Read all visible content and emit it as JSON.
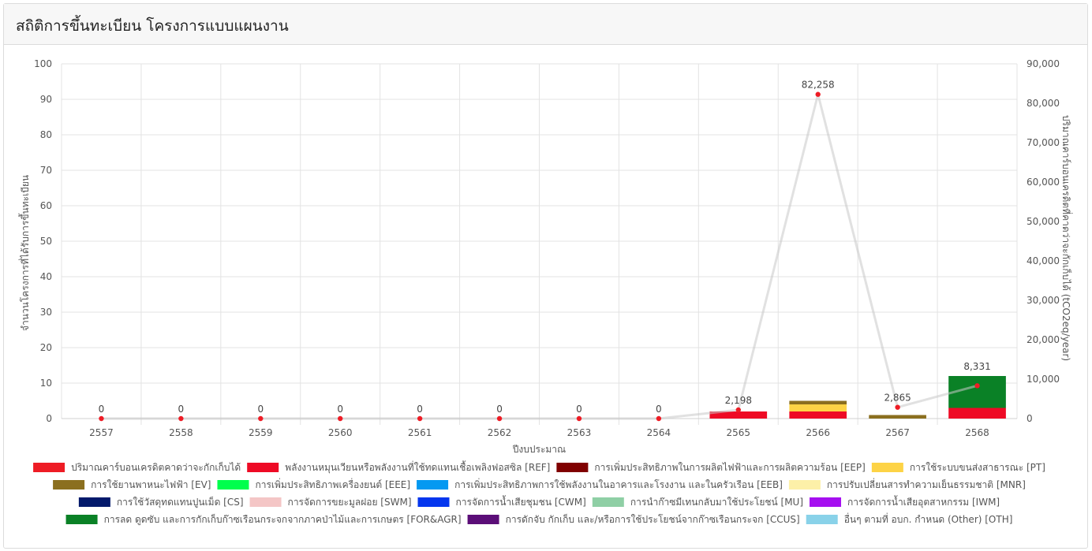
{
  "header": {
    "title": "สถิติการขึ้นทะเบียน โครงการแบบแผนงาน"
  },
  "chart_data": {
    "type": "bar",
    "categories": [
      "2557",
      "2558",
      "2559",
      "2560",
      "2561",
      "2562",
      "2563",
      "2564",
      "2565",
      "2566",
      "2567",
      "2568"
    ],
    "xlabel": "ปีงบประมาณ",
    "ylabel": "จำนวนโครงการที่ได้รับการขึ้นทะเบียน",
    "ylabel_right": "ปริมาณคาร์บอนเครดิตที่คาดว่าจะกักเก็บได้ (tCO2eq/year)",
    "ylim": [
      0,
      100
    ],
    "yticks": [
      0,
      10,
      20,
      30,
      40,
      50,
      60,
      70,
      80,
      90,
      100
    ],
    "ylim_right": [
      0,
      90000
    ],
    "yticks_right": [
      "0",
      "10,000",
      "20,000",
      "30,000",
      "40,000",
      "50,000",
      "60,000",
      "70,000",
      "80,000",
      "90,000"
    ],
    "grid": true,
    "legend_position": "bottom",
    "line_series": {
      "name": "ปริมาณคาร์บอนเครดิตคาดว่าจะกักเก็บได้",
      "color": "#ee1c25",
      "values": [
        0,
        0,
        0,
        0,
        0,
        0,
        0,
        0,
        2198,
        82258,
        2865,
        8331
      ],
      "labels": [
        "0",
        "0",
        "0",
        "0",
        "0",
        "0",
        "0",
        "0",
        "2,198",
        "82,258",
        "2,865",
        "8,331"
      ]
    },
    "series": [
      {
        "name": "พลังงานหมุนเวียนหรือพลังงานที่ใช้ทดแทนเชื้อเพลิงฟอสซิล [REF]",
        "color": "#ee0a25",
        "values": [
          0,
          0,
          0,
          0,
          0,
          0,
          0,
          0,
          2,
          2,
          0,
          3
        ]
      },
      {
        "name": "การเพิ่มประสิทธิภาพในการผลิตไฟฟ้าและการผลิตความร้อน [EEP]",
        "color": "#800000",
        "values": [
          0,
          0,
          0,
          0,
          0,
          0,
          0,
          0,
          0,
          0,
          0,
          0
        ]
      },
      {
        "name": "การใช้ระบบขนส่งสาธารณะ [PT]",
        "color": "#fdd346",
        "values": [
          0,
          0,
          0,
          0,
          0,
          0,
          0,
          0,
          0,
          2,
          0,
          0
        ]
      },
      {
        "name": "การใช้ยานพาหนะไฟฟ้า [EV]",
        "color": "#8b6f1f",
        "values": [
          0,
          0,
          0,
          0,
          0,
          0,
          0,
          0,
          0,
          1,
          1,
          0
        ]
      },
      {
        "name": "การเพิ่มประสิทธิภาพเครื่องยนต์ [EEE]",
        "color": "#00ff4d",
        "values": [
          0,
          0,
          0,
          0,
          0,
          0,
          0,
          0,
          0,
          0,
          0,
          0
        ]
      },
      {
        "name": "การเพิ่มประสิทธิภาพการใช้พลังงานในอาคารและโรงงาน และในครัวเรือน [EEB]",
        "color": "#0499f1",
        "values": [
          0,
          0,
          0,
          0,
          0,
          0,
          0,
          0,
          0,
          0,
          0,
          0
        ]
      },
      {
        "name": "การปรับเปลี่ยนสารทำความเย็นธรรมชาติ [MNR]",
        "color": "#fdf0a8",
        "values": [
          0,
          0,
          0,
          0,
          0,
          0,
          0,
          0,
          0,
          0,
          0,
          0
        ]
      },
      {
        "name": "การใช้วัสดุทดแทนปูนเม็ด [CS]",
        "color": "#03196b",
        "values": [
          0,
          0,
          0,
          0,
          0,
          0,
          0,
          0,
          0,
          0,
          0,
          0
        ]
      },
      {
        "name": "การจัดการขยะมูลฝอย [SWM]",
        "color": "#f4c6c6",
        "values": [
          0,
          0,
          0,
          0,
          0,
          0,
          0,
          0,
          0,
          0,
          0,
          0
        ]
      },
      {
        "name": "การจัดการน้ำเสียชุมชน [CWM]",
        "color": "#0536ee",
        "values": [
          0,
          0,
          0,
          0,
          0,
          0,
          0,
          0,
          0,
          0,
          0,
          0
        ]
      },
      {
        "name": "การนำก๊าซมีเทนกลับมาใช้ประโยชน์ [MU]",
        "color": "#8fcfa5",
        "values": [
          0,
          0,
          0,
          0,
          0,
          0,
          0,
          0,
          0,
          0,
          0,
          0
        ]
      },
      {
        "name": "การจัดการน้ำเสียอุตสาหกรรม [IWM]",
        "color": "#a50ff0",
        "values": [
          0,
          0,
          0,
          0,
          0,
          0,
          0,
          0,
          0,
          0,
          0,
          0
        ]
      },
      {
        "name": "การลด ดูดซับ และการกักเก็บก๊าซเรือนกระจกจากภาคป่าไม้และการเกษตร [FOR&AGR]",
        "color": "#0a8126",
        "values": [
          0,
          0,
          0,
          0,
          0,
          0,
          0,
          0,
          0,
          0,
          0,
          9
        ]
      },
      {
        "name": "การดักจับ กักเก็บ และ/หรือการใช้ประโยชน์จากก๊าซเรือนกระจก [CCUS]",
        "color": "#5b0e78",
        "values": [
          0,
          0,
          0,
          0,
          0,
          0,
          0,
          0,
          0,
          0,
          0,
          0
        ]
      },
      {
        "name": "อื่นๆ ตามที่ อบก. กำหนด (Other) [OTH]",
        "color": "#89d2e9",
        "values": [
          0,
          0,
          0,
          0,
          0,
          0,
          0,
          0,
          0,
          0,
          0,
          0
        ]
      }
    ],
    "legend": [
      {
        "label": "ปริมาณคาร์บอนเครดิตคาดว่าจะกักเก็บได้",
        "color": "#ee1c25"
      },
      {
        "label": "พลังงานหมุนเวียนหรือพลังงานที่ใช้ทดแทนเชื้อเพลิงฟอสซิล [REF]",
        "color": "#ee0a25"
      },
      {
        "label": "การเพิ่มประสิทธิภาพในการผลิตไฟฟ้าและการผลิตความร้อน [EEP]",
        "color": "#800000"
      },
      {
        "label": "การใช้ระบบขนส่งสาธารณะ [PT]",
        "color": "#fdd346"
      },
      {
        "label": "การใช้ยานพาหนะไฟฟ้า [EV]",
        "color": "#8b6f1f"
      },
      {
        "label": "การเพิ่มประสิทธิภาพเครื่องยนต์ [EEE]",
        "color": "#00ff4d"
      },
      {
        "label": "การเพิ่มประสิทธิภาพการใช้พลังงานในอาคารและโรงงาน และในครัวเรือน [EEB]",
        "color": "#0499f1"
      },
      {
        "label": "การปรับเปลี่ยนสารทำความเย็นธรรมชาติ [MNR]",
        "color": "#fdf0a8"
      },
      {
        "label": "การใช้วัสดุทดแทนปูนเม็ด [CS]",
        "color": "#03196b"
      },
      {
        "label": "การจัดการขยะมูลฝอย [SWM]",
        "color": "#f4c6c6"
      },
      {
        "label": "การจัดการน้ำเสียชุมชน [CWM]",
        "color": "#0536ee"
      },
      {
        "label": "การนำก๊าซมีเทนกลับมาใช้ประโยชน์ [MU]",
        "color": "#8fcfa5"
      },
      {
        "label": "การจัดการน้ำเสียอุตสาหกรรม [IWM]",
        "color": "#a50ff0"
      },
      {
        "label": "การลด ดูดซับ และการกักเก็บก๊าซเรือนกระจกจากภาคป่าไม้และการเกษตร [FOR&AGR]",
        "color": "#0a8126"
      },
      {
        "label": "การดักจับ กักเก็บ และ/หรือการใช้ประโยชน์จากก๊าซเรือนกระจก [CCUS]",
        "color": "#5b0e78"
      },
      {
        "label": "อื่นๆ ตามที่ อบก. กำหนด (Other) [OTH]",
        "color": "#89d2e9"
      }
    ]
  }
}
